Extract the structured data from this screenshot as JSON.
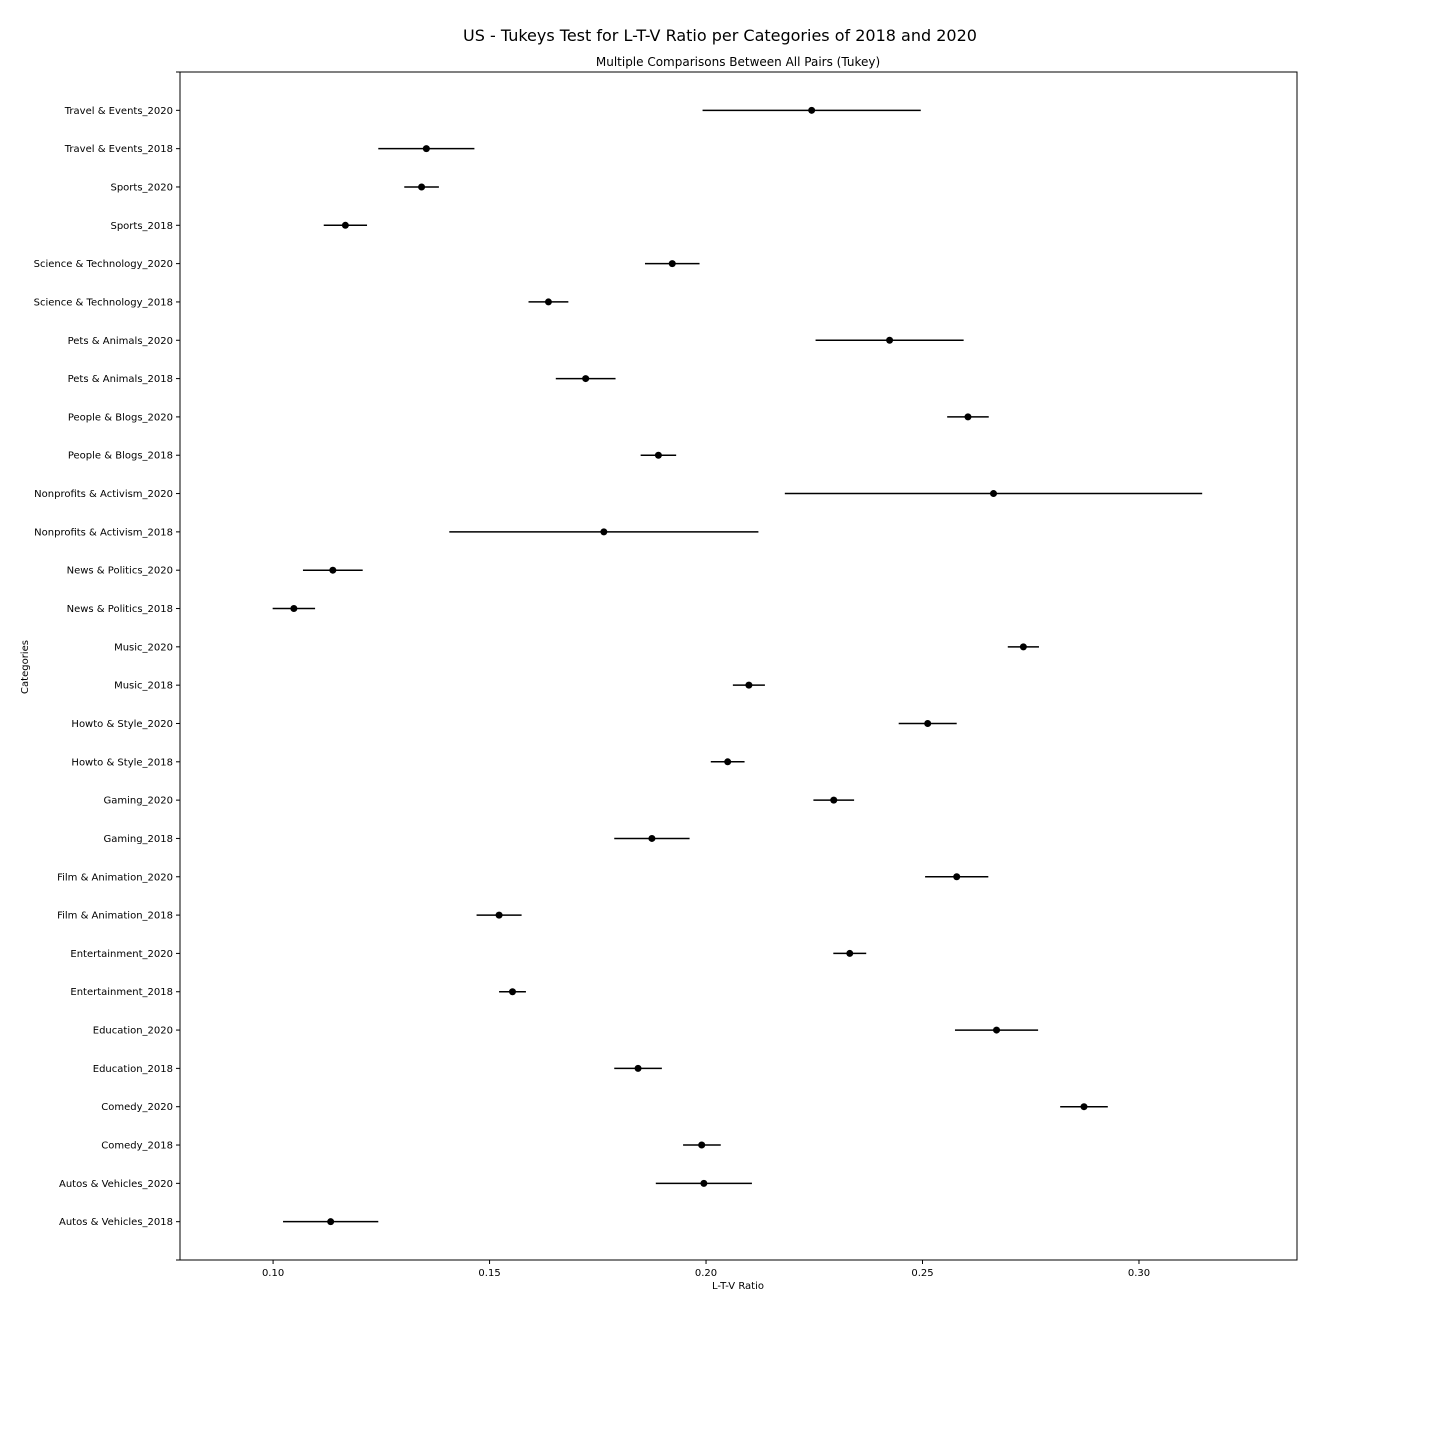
{
  "chart_data": {
    "type": "scatter",
    "suptitle": "US - Tukeys Test for L-T-V Ratio per Categories of 2018 and 2020",
    "title": "Multiple Comparisons Between All Pairs (Tukey)",
    "xlabel": "L-T-V Ratio",
    "ylabel": "Categories",
    "xlim": [
      0.0785,
      0.3365
    ],
    "xticks": [
      "0.10",
      "0.15",
      "0.20",
      "0.25",
      "0.30"
    ],
    "grid": false,
    "legend": "none",
    "colors": {
      "marker": "#000000",
      "interval": "#000000",
      "axis": "#000000"
    },
    "categories": [
      "Autos & Vehicles_2018",
      "Autos & Vehicles_2020",
      "Comedy_2018",
      "Comedy_2020",
      "Education_2018",
      "Education_2020",
      "Entertainment_2018",
      "Entertainment_2020",
      "Film & Animation_2018",
      "Film & Animation_2020",
      "Gaming_2018",
      "Gaming_2020",
      "Howto & Style_2018",
      "Howto & Style_2020",
      "Music_2018",
      "Music_2020",
      "News & Politics_2018",
      "News & Politics_2020",
      "Nonprofits & Activism_2018",
      "Nonprofits & Activism_2020",
      "People & Blogs_2018",
      "People & Blogs_2020",
      "Pets & Animals_2018",
      "Pets & Animals_2020",
      "Science & Technology_2018",
      "Science & Technology_2020",
      "Sports_2018",
      "Sports_2020",
      "Travel & Events_2018",
      "Travel & Events_2020"
    ],
    "means": [
      0.1133,
      0.1995,
      0.199,
      0.2873,
      0.1843,
      0.2671,
      0.1553,
      0.2332,
      0.1522,
      0.2579,
      0.1875,
      0.2295,
      0.205,
      0.2512,
      0.2099,
      0.2733,
      0.1048,
      0.1138,
      0.1764,
      0.2664,
      0.189,
      0.2605,
      0.1722,
      0.2424,
      0.1636,
      0.1922,
      0.1167,
      0.1343,
      0.1354,
      0.2244
    ],
    "lower": [
      0.1023,
      0.1884,
      0.1947,
      0.2818,
      0.1788,
      0.2575,
      0.1522,
      0.2294,
      0.147,
      0.2506,
      0.1788,
      0.2248,
      0.2011,
      0.2445,
      0.2062,
      0.2697,
      0.0999,
      0.1069,
      0.1407,
      0.2182,
      0.1849,
      0.2557,
      0.1653,
      0.2253,
      0.159,
      0.1859,
      0.1117,
      0.1303,
      0.1243,
      0.1992
    ],
    "upper": [
      0.1243,
      0.2106,
      0.2034,
      0.2928,
      0.1898,
      0.2767,
      0.1584,
      0.237,
      0.1574,
      0.2652,
      0.1962,
      0.2342,
      0.2089,
      0.2579,
      0.2136,
      0.2769,
      0.1097,
      0.1207,
      0.2121,
      0.3146,
      0.1931,
      0.2653,
      0.1791,
      0.2595,
      0.1682,
      0.1985,
      0.1217,
      0.1383,
      0.1465,
      0.2496
    ]
  }
}
